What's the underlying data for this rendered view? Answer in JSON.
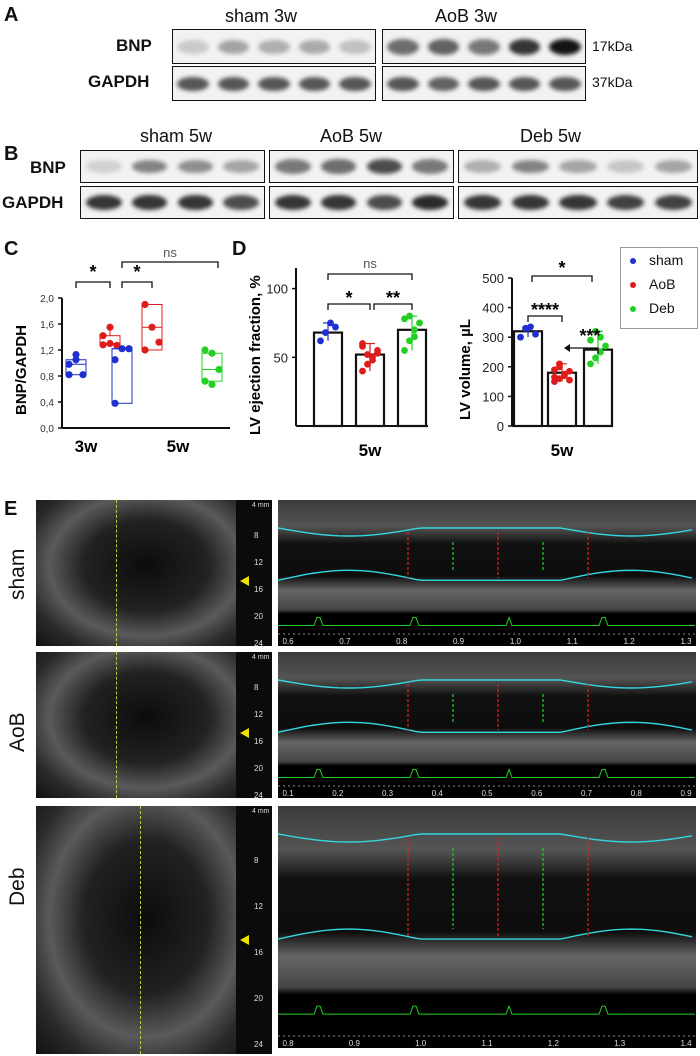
{
  "panels": {
    "A": "A",
    "B": "B",
    "C": "C",
    "D": "D",
    "E": "E"
  },
  "panelA": {
    "groups": [
      "sham 3w",
      "AoB 3w"
    ],
    "rows": [
      "BNP",
      "GAPDH"
    ],
    "sizes": [
      "17kDa",
      "37kDa"
    ]
  },
  "panelB": {
    "groups": [
      "sham 5w",
      "AoB 5w",
      "Deb 5w"
    ],
    "rows": [
      "BNP",
      "GAPDH"
    ]
  },
  "panelE": {
    "rows": [
      "sham",
      "AoB",
      "Deb"
    ],
    "scale_top": "4 mm",
    "scale_ticks": [
      "8",
      "12",
      "16",
      "20",
      "24"
    ],
    "axis_ticks": [
      [
        "0.6",
        "0.7",
        "0.8",
        "0.9",
        "1.0",
        "1.1",
        "1.2",
        "1.3"
      ],
      [
        "0.1",
        "0.2",
        "0.3",
        "0.4",
        "0.5",
        "0.6",
        "0.7",
        "0.8",
        "0.9"
      ],
      [
        "0.8",
        "0.9",
        "1.0",
        "1.1",
        "1.2",
        "1.3",
        "1.4"
      ]
    ]
  },
  "colors": {
    "sham": "#1f2fd0",
    "AoB": "#e01b1b",
    "Deb": "#22d022"
  },
  "chart_data": [
    {
      "type": "box",
      "id": "C",
      "ylabel": "BNP/GAPDH",
      "categories": [
        "3w",
        "5w"
      ],
      "yticks": [
        "0,0",
        "0,4",
        "0,8",
        "1,2",
        "1,6",
        "2,0"
      ],
      "ylim": [
        0,
        2.0
      ],
      "series": [
        {
          "name": "sham 3w",
          "group": "3w",
          "color": "sham",
          "points": [
            0.98,
            1.05,
            0.82,
            0.82,
            1.13
          ]
        },
        {
          "name": "AoB 3w",
          "group": "3w",
          "color": "AoB",
          "points": [
            1.28,
            1.3,
            1.27,
            1.42,
            1.55
          ]
        },
        {
          "name": "sham 5w",
          "group": "5w",
          "color": "sham",
          "points": [
            1.05,
            1.22,
            1.22,
            0.38
          ]
        },
        {
          "name": "AoB 5w",
          "group": "5w",
          "color": "AoB",
          "points": [
            1.9,
            1.55,
            1.32,
            1.2
          ]
        },
        {
          "name": "Deb 5w",
          "group": "5w",
          "color": "Deb",
          "points": [
            1.2,
            1.15,
            0.9,
            0.72,
            0.67
          ]
        }
      ],
      "significance": [
        "*",
        "*",
        "ns"
      ]
    },
    {
      "type": "bar",
      "id": "D1",
      "ylabel": "LV ejection fraction, %",
      "xlabel": "5w",
      "yticks": [
        "50",
        "100"
      ],
      "ylim": [
        0,
        115
      ],
      "categories": [
        "sham",
        "AoB",
        "Deb"
      ],
      "values": [
        68,
        52,
        70
      ],
      "points": [
        [
          62,
          68,
          75,
          72
        ],
        [
          40,
          45,
          50,
          55,
          58,
          52,
          48,
          53,
          60
        ],
        [
          55,
          62,
          70,
          75,
          78,
          80,
          65
        ]
      ],
      "significance": [
        "*",
        "**",
        "ns"
      ]
    },
    {
      "type": "bar",
      "id": "D2",
      "ylabel": "LV volume, µL",
      "xlabel": "5w",
      "yticks": [
        "0",
        "100",
        "200",
        "300",
        "400",
        "500"
      ],
      "ylim": [
        0,
        500
      ],
      "categories": [
        "sham",
        "AoB",
        "Deb"
      ],
      "values": [
        320,
        180,
        258
      ],
      "points": [
        [
          300,
          330,
          335,
          310
        ],
        [
          150,
          160,
          175,
          185,
          190,
          200,
          170,
          155,
          165,
          210
        ],
        [
          210,
          230,
          250,
          270,
          290,
          320,
          300
        ]
      ],
      "significance": [
        "****",
        "***",
        "*"
      ]
    }
  ],
  "legend": [
    "sham",
    "AoB",
    "Deb"
  ]
}
